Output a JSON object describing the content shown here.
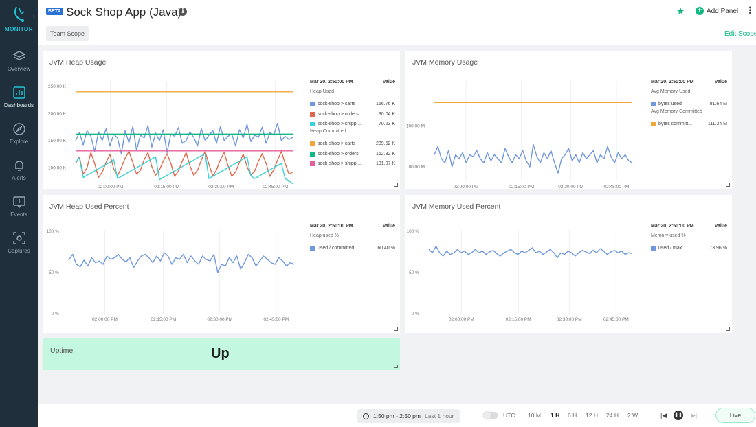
{
  "sidebar": {
    "logo_text": "MONITOR",
    "items": [
      {
        "label": "Overview",
        "icon": "layers-icon"
      },
      {
        "label": "Dashboards",
        "icon": "bar-chart-icon",
        "active": true
      },
      {
        "label": "Explore",
        "icon": "compass-icon"
      },
      {
        "label": "Alerts",
        "icon": "bell-icon"
      },
      {
        "label": "Events",
        "icon": "events-icon"
      },
      {
        "label": "Captures",
        "icon": "capture-icon"
      }
    ]
  },
  "header": {
    "badge": "BETA",
    "title": "Sock Shop App (Java)",
    "scope": "Team Scope",
    "add_panel": "Add Panel",
    "edit_scope": "Edit Scope"
  },
  "colors": {
    "blue": "#6f98de",
    "red": "#df6a4f",
    "cyan": "#34d4da",
    "orange": "#f0a63a",
    "green": "#10b883",
    "pink": "#e55f9c",
    "uptime_bg": "#c4f7df",
    "sidebar_bg": "#202f3c"
  },
  "panels": {
    "heap_usage": {
      "title": "JVM Heap Usage",
      "legend": {
        "time": "Mar 20, 2:50:00 PM",
        "value_header": "value",
        "groups": [
          {
            "name": "Heap Used",
            "rows": [
              {
                "name": "sock-shop > carts",
                "value": "156.76 K",
                "color": "#6f98de"
              },
              {
                "name": "sock-shop > orders",
                "value": "90.04 K",
                "color": "#df6a4f"
              },
              {
                "name": "sock-shop > shippi...",
                "value": "70.23 K",
                "color": "#34d4da"
              }
            ]
          },
          {
            "name": "Heap Committed",
            "rows": [
              {
                "name": "sock-shop > carts",
                "value": "239.62 K",
                "color": "#f0a63a"
              },
              {
                "name": "sock-shop > orders",
                "value": "162.82 K",
                "color": "#10b883"
              },
              {
                "name": "sock-shop > shippi...",
                "value": "131.07 K",
                "color": "#e55f9c"
              }
            ]
          }
        ]
      }
    },
    "memory_usage": {
      "title": "JVM Memory Usage",
      "legend": {
        "time": "Mar 20, 2:50:00 PM",
        "value_header": "value",
        "groups": [
          {
            "name": "Avg Memory Used",
            "rows": [
              {
                "name": "bytes used",
                "value": "81.64 M",
                "color": "#6f98de"
              }
            ]
          },
          {
            "name": "Avg Memory Committed",
            "rows": [
              {
                "name": "bytes committ...",
                "value": "111.34 M",
                "color": "#f0a63a"
              }
            ]
          }
        ]
      }
    },
    "heap_percent": {
      "title": "JVM Heap Used Percent",
      "legend": {
        "time": "Mar 20, 2:50:00 PM",
        "value_header": "value",
        "groups": [
          {
            "name": "Heap used %",
            "rows": [
              {
                "name": "used / committed",
                "value": "60.40 %",
                "color": "#6f98de"
              }
            ]
          }
        ]
      }
    },
    "memory_percent": {
      "title": "JVM Memory Used Percent",
      "legend": {
        "time": "Mar 20, 2:50:00 PM",
        "value_header": "value",
        "groups": [
          {
            "name": "Memory used %",
            "rows": [
              {
                "name": "used / max",
                "value": "73.96 %",
                "color": "#6f98de"
              }
            ]
          }
        ]
      }
    },
    "uptime": {
      "title": "Uptime",
      "value": "Up"
    }
  },
  "chart_data": [
    {
      "type": "line",
      "title": "JVM Heap Usage",
      "x_ticks": [
        "02:00:00 PM",
        "02:15:00 PM",
        "02:30:00 PM",
        "02:45:00 PM"
      ],
      "y_ticks": [
        "100.00 K",
        "150.00 K",
        "200.00 K",
        "250.00 K"
      ],
      "ylim": [
        75,
        260
      ],
      "series": [
        {
          "name": "sock-shop > carts",
          "color": "#6f98de",
          "values": [
            150,
            165,
            142,
            168,
            158,
            130,
            166,
            150,
            172,
            140,
            162,
            155,
            125,
            168,
            146,
            176,
            132,
            160,
            155,
            178,
            138,
            164,
            150,
            170,
            128,
            162,
            158,
            174,
            145,
            150,
            166,
            156,
            140,
            172,
            150,
            160,
            168,
            145,
            176,
            150,
            158,
            162,
            140,
            170,
            155,
            180,
            148,
            160,
            156,
            175,
            145,
            165,
            160,
            182,
            150,
            158,
            152,
            156
          ]
        },
        {
          "name": "sock-shop > orders",
          "color": "#df6a4f",
          "values": [
            108,
            120,
            88,
            100,
            128,
            108,
            82,
            92,
            110,
            125,
            98,
            85,
            100,
            118,
            130,
            110,
            88,
            95,
            115,
            128,
            102,
            86,
            96,
            112,
            126,
            108,
            84,
            94,
            112,
            128,
            104,
            86,
            95,
            114,
            130,
            106,
            85,
            96,
            115,
            128,
            104,
            84,
            92,
            110,
            125,
            102,
            86,
            94,
            112,
            126,
            108,
            84,
            96,
            114,
            130,
            108,
            88,
            92
          ]
        },
        {
          "name": "sock-shop > shippi...",
          "color": "#34d4da",
          "values": [
            110,
            118,
            82,
            86,
            90,
            94,
            98,
            102,
            106,
            110,
            115,
            80,
            84,
            88,
            92,
            96,
            100,
            104,
            108,
            112,
            116,
            120,
            78,
            82,
            86,
            90,
            94,
            98,
            102,
            106,
            110,
            114,
            118,
            122,
            126,
            80,
            84,
            88,
            92,
            96,
            100,
            104,
            108,
            112,
            116,
            120,
            85,
            80,
            84,
            88,
            92,
            96,
            100,
            104,
            108,
            80,
            76,
            70
          ]
        },
        {
          "name": "Heap Committed carts",
          "color": "#f0a63a",
          "values": [
            240,
            240
          ]
        },
        {
          "name": "Heap Committed orders",
          "color": "#10b883",
          "values": [
            162,
            162
          ]
        },
        {
          "name": "Heap Committed shipping",
          "color": "#e55f9c",
          "values": [
            131,
            131
          ]
        }
      ]
    },
    {
      "type": "line",
      "title": "JVM Memory Usage",
      "x_ticks": [
        "02:00:00 PM",
        "02:15:00 PM",
        "02:30:00 PM",
        "02:45:00 PM"
      ],
      "y_ticks": [
        "80.00 M",
        "100.00 M"
      ],
      "ylim": [
        73,
        122
      ],
      "series": [
        {
          "name": "bytes used",
          "color": "#6f98de",
          "values": [
            86,
            90,
            84,
            82,
            88,
            80,
            86,
            84,
            87,
            82,
            86,
            85,
            88,
            84,
            82,
            87,
            83,
            86,
            84,
            82,
            89,
            85,
            82,
            86,
            84,
            88,
            83,
            80,
            91,
            85,
            82,
            87,
            84,
            88,
            82,
            77,
            84,
            86,
            89,
            83,
            86,
            82,
            87,
            84,
            86,
            88,
            82,
            86,
            84,
            90,
            85,
            82,
            87,
            84,
            86,
            83,
            82
          ]
        },
        {
          "name": "bytes committ...",
          "color": "#f0a63a",
          "values": [
            111.5,
            111.5
          ]
        }
      ]
    },
    {
      "type": "line",
      "title": "JVM Heap Used Percent",
      "x_ticks": [
        "02:00:00 PM",
        "02:15:00 PM",
        "02:30:00 PM",
        "02:45:00 PM"
      ],
      "y_ticks": [
        "0 %",
        "50 %",
        "100 %"
      ],
      "ylim": [
        0,
        100
      ],
      "series": [
        {
          "name": "used / committed",
          "color": "#6f98de",
          "values": [
            65,
            72,
            60,
            57,
            65,
            58,
            68,
            62,
            64,
            60,
            70,
            66,
            68,
            72,
            66,
            63,
            68,
            56,
            64,
            70,
            72,
            68,
            62,
            70,
            64,
            74,
            70,
            60,
            68,
            66,
            72,
            62,
            70,
            64,
            60,
            70,
            66,
            64,
            72,
            50,
            60,
            58,
            68,
            62,
            70,
            54,
            62,
            72,
            68,
            58,
            64,
            70,
            66,
            62,
            60,
            68,
            64,
            58,
            62,
            60
          ]
        }
      ]
    },
    {
      "type": "line",
      "title": "JVM Memory Used Percent",
      "x_ticks": [
        "02:00:00 PM",
        "02:15:00 PM",
        "02:30:00 PM",
        "02:45:00 PM"
      ],
      "y_ticks": [
        "0 %",
        "50 %",
        "100 %"
      ],
      "ylim": [
        0,
        100
      ],
      "series": [
        {
          "name": "used / max",
          "color": "#6f98de",
          "values": [
            78,
            74,
            82,
            74,
            70,
            76,
            72,
            74,
            78,
            74,
            76,
            72,
            74,
            78,
            74,
            76,
            72,
            75,
            77,
            73,
            70,
            74,
            76,
            78,
            74,
            72,
            76,
            74,
            77,
            80,
            74,
            76,
            72,
            75,
            78,
            74,
            68,
            74,
            72,
            76,
            74,
            70,
            74,
            77,
            75,
            73,
            77,
            74,
            79,
            76,
            72,
            75,
            77,
            74,
            76,
            72,
            74,
            73
          ]
        }
      ]
    }
  ],
  "bottom_bar": {
    "time_range": "1:50 pm - 2:50 pm",
    "time_sub": "Last 1 hour",
    "utc_label": "UTC",
    "ranges": [
      "10 M",
      "1 H",
      "6 H",
      "12 H",
      "24 H",
      "2 W"
    ],
    "active_range": "1 H",
    "live_label": "Live"
  }
}
